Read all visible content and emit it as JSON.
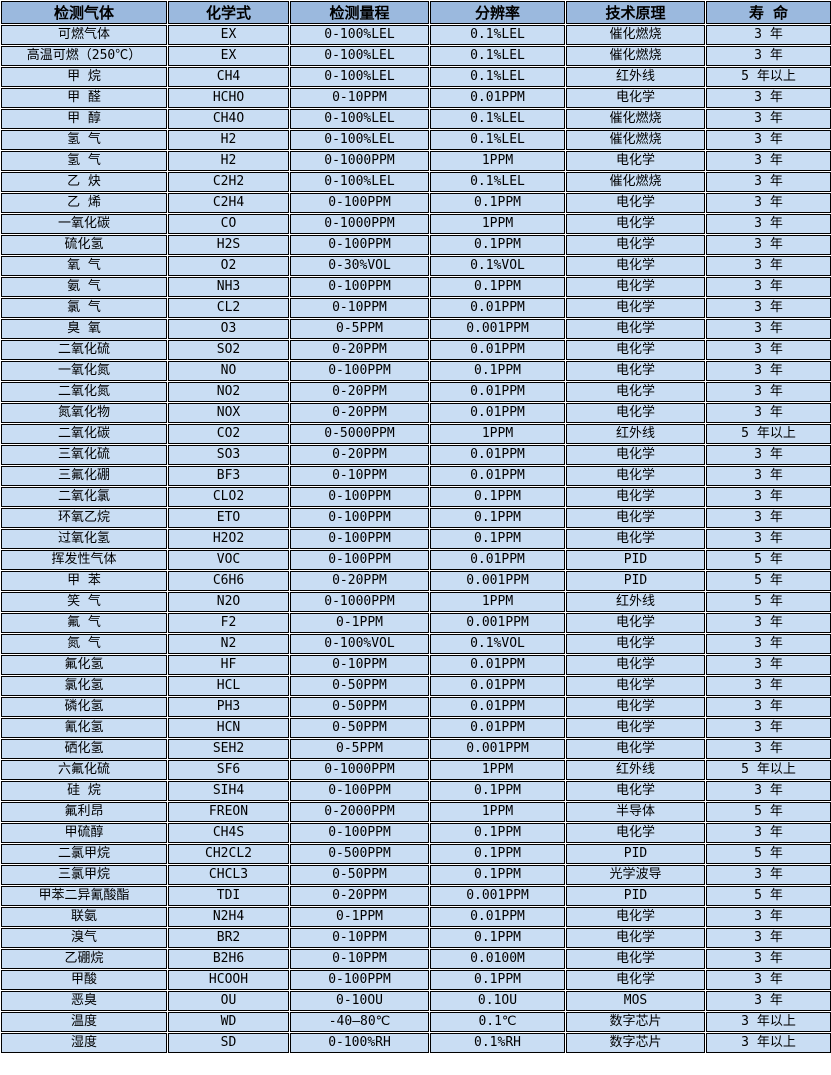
{
  "colors": {
    "header_bg": "#9bb9de",
    "row_bg": "#c9ddf3",
    "border": "#000000",
    "grid_gap": "#ffffff",
    "text": "#000000"
  },
  "table": {
    "columns": [
      "检测气体",
      "化学式",
      "检测量程",
      "分辨率",
      "技术原理",
      "寿 命"
    ],
    "rows": [
      [
        "可燃气体",
        "EX",
        "0-100%LEL",
        "0.1%LEL",
        "催化燃烧",
        "3 年"
      ],
      [
        "高温可燃（250℃）",
        "EX",
        "0-100%LEL",
        "0.1%LEL",
        "催化燃烧",
        "3 年"
      ],
      [
        "甲 烷",
        "CH4",
        "0-100%LEL",
        "0.1%LEL",
        "红外线",
        "5 年以上"
      ],
      [
        "甲 醛",
        "HCHO",
        "0-10PPM",
        "0.01PPM",
        "电化学",
        "3 年"
      ],
      [
        "甲 醇",
        "CH4O",
        "0-100%LEL",
        "0.1%LEL",
        "催化燃烧",
        "3 年"
      ],
      [
        "氢 气",
        "H2",
        "0-100%LEL",
        "0.1%LEL",
        "催化燃烧",
        "3 年"
      ],
      [
        "氢 气",
        "H2",
        "0-1000PPM",
        "1PPM",
        "电化学",
        "3 年"
      ],
      [
        "乙 炔",
        "C2H2",
        "0-100%LEL",
        "0.1%LEL",
        "催化燃烧",
        "3 年"
      ],
      [
        "乙 烯",
        "C2H4",
        "0-100PPM",
        "0.1PPM",
        "电化学",
        "3 年"
      ],
      [
        "一氧化碳",
        "CO",
        "0-1000PPM",
        "1PPM",
        "电化学",
        "3 年"
      ],
      [
        "硫化氢",
        "H2S",
        "0-100PPM",
        "0.1PPM",
        "电化学",
        "3 年"
      ],
      [
        "氧 气",
        "O2",
        "0-30%VOL",
        "0.1%VOL",
        "电化学",
        "3 年"
      ],
      [
        "氨 气",
        "NH3",
        "0-100PPM",
        "0.1PPM",
        "电化学",
        "3 年"
      ],
      [
        "氯 气",
        "CL2",
        "0-10PPM",
        "0.01PPM",
        "电化学",
        "3 年"
      ],
      [
        "臭 氧",
        "O3",
        "0-5PPM",
        "0.001PPM",
        "电化学",
        "3 年"
      ],
      [
        "二氧化硫",
        "SO2",
        "0-20PPM",
        "0.01PPM",
        "电化学",
        "3 年"
      ],
      [
        "一氧化氮",
        "NO",
        "0-100PPM",
        "0.1PPM",
        "电化学",
        "3 年"
      ],
      [
        "二氧化氮",
        "NO2",
        "0-20PPM",
        "0.01PPM",
        "电化学",
        "3 年"
      ],
      [
        "氮氧化物",
        "NOX",
        "0-20PPM",
        "0.01PPM",
        "电化学",
        "3 年"
      ],
      [
        "二氧化碳",
        "CO2",
        "0-5000PPM",
        "1PPM",
        "红外线",
        "5 年以上"
      ],
      [
        "三氧化硫",
        "SO3",
        "0-20PPM",
        "0.01PPM",
        "电化学",
        "3 年"
      ],
      [
        "三氟化硼",
        "BF3",
        "0-10PPM",
        "0.01PPM",
        "电化学",
        "3 年"
      ],
      [
        "二氧化氯",
        "CLO2",
        "0-100PPM",
        "0.1PPM",
        "电化学",
        "3 年"
      ],
      [
        "环氧乙烷",
        "ETO",
        "0-100PPM",
        "0.1PPM",
        "电化学",
        "3 年"
      ],
      [
        "过氧化氢",
        "H2O2",
        "0-100PPM",
        "0.1PPM",
        "电化学",
        "3 年"
      ],
      [
        "挥发性气体",
        "VOC",
        "0-100PPM",
        "0.01PPM",
        "PID",
        "5 年"
      ],
      [
        "甲 苯",
        "C6H6",
        "0-20PPM",
        "0.001PPM",
        "PID",
        "5 年"
      ],
      [
        "笑 气",
        "N2O",
        "0-1000PPM",
        "1PPM",
        "红外线",
        "5 年"
      ],
      [
        "氟 气",
        "F2",
        "0-1PPM",
        "0.001PPM",
        "电化学",
        "3 年"
      ],
      [
        "氮 气",
        "N2",
        "0-100%VOL",
        "0.1%VOL",
        "电化学",
        "3 年"
      ],
      [
        "氟化氢",
        "HF",
        "0-10PPM",
        "0.01PPM",
        "电化学",
        "3 年"
      ],
      [
        "氯化氢",
        "HCL",
        "0-50PPM",
        "0.01PPM",
        "电化学",
        "3 年"
      ],
      [
        "磷化氢",
        "PH3",
        "0-50PPM",
        "0.01PPM",
        "电化学",
        "3 年"
      ],
      [
        "氰化氢",
        "HCN",
        "0-50PPM",
        "0.01PPM",
        "电化学",
        "3 年"
      ],
      [
        "硒化氢",
        "SEH2",
        "0-5PPM",
        "0.001PPM",
        "电化学",
        "3 年"
      ],
      [
        "六氟化硫",
        "SF6",
        "0-1000PPM",
        "1PPM",
        "红外线",
        "5 年以上"
      ],
      [
        "硅 烷",
        "SIH4",
        "0-100PPM",
        "0.1PPM",
        "电化学",
        "3 年"
      ],
      [
        "氟利昂",
        "FREON",
        "0-2000PPM",
        "1PPM",
        "半导体",
        "5 年"
      ],
      [
        "甲硫醇",
        "CH4S",
        "0-100PPM",
        "0.1PPM",
        "电化学",
        "3 年"
      ],
      [
        "二氯甲烷",
        "CH2CL2",
        "0-500PPM",
        "0.1PPM",
        "PID",
        "5 年"
      ],
      [
        "三氯甲烷",
        "CHCL3",
        "0-50PPM",
        "0.1PPM",
        "光学波导",
        "3 年"
      ],
      [
        "甲苯二异氰酸酯",
        "TDI",
        "0-20PPM",
        "0.001PPM",
        "PID",
        "5 年"
      ],
      [
        "联氨",
        "N2H4",
        "0-1PPM",
        "0.01PPM",
        "电化学",
        "3 年"
      ],
      [
        "溴气",
        "BR2",
        "0-10PPM",
        "0.1PPM",
        "电化学",
        "3 年"
      ],
      [
        "乙硼烷",
        "B2H6",
        "0-10PPM",
        "0.0100M",
        "电化学",
        "3 年"
      ],
      [
        "甲酸",
        "HCOOH",
        "0-100PPM",
        "0.1PPM",
        "电化学",
        "3 年"
      ],
      [
        "恶臭",
        "OU",
        "0-10OU",
        "0.1OU",
        "MOS",
        "3 年"
      ],
      [
        "温度",
        "WD",
        "-40—80℃",
        "0.1℃",
        "数字芯片",
        "3 年以上"
      ],
      [
        "湿度",
        "SD",
        "0-100%RH",
        "0.1%RH",
        "数字芯片",
        "3 年以上"
      ]
    ]
  }
}
